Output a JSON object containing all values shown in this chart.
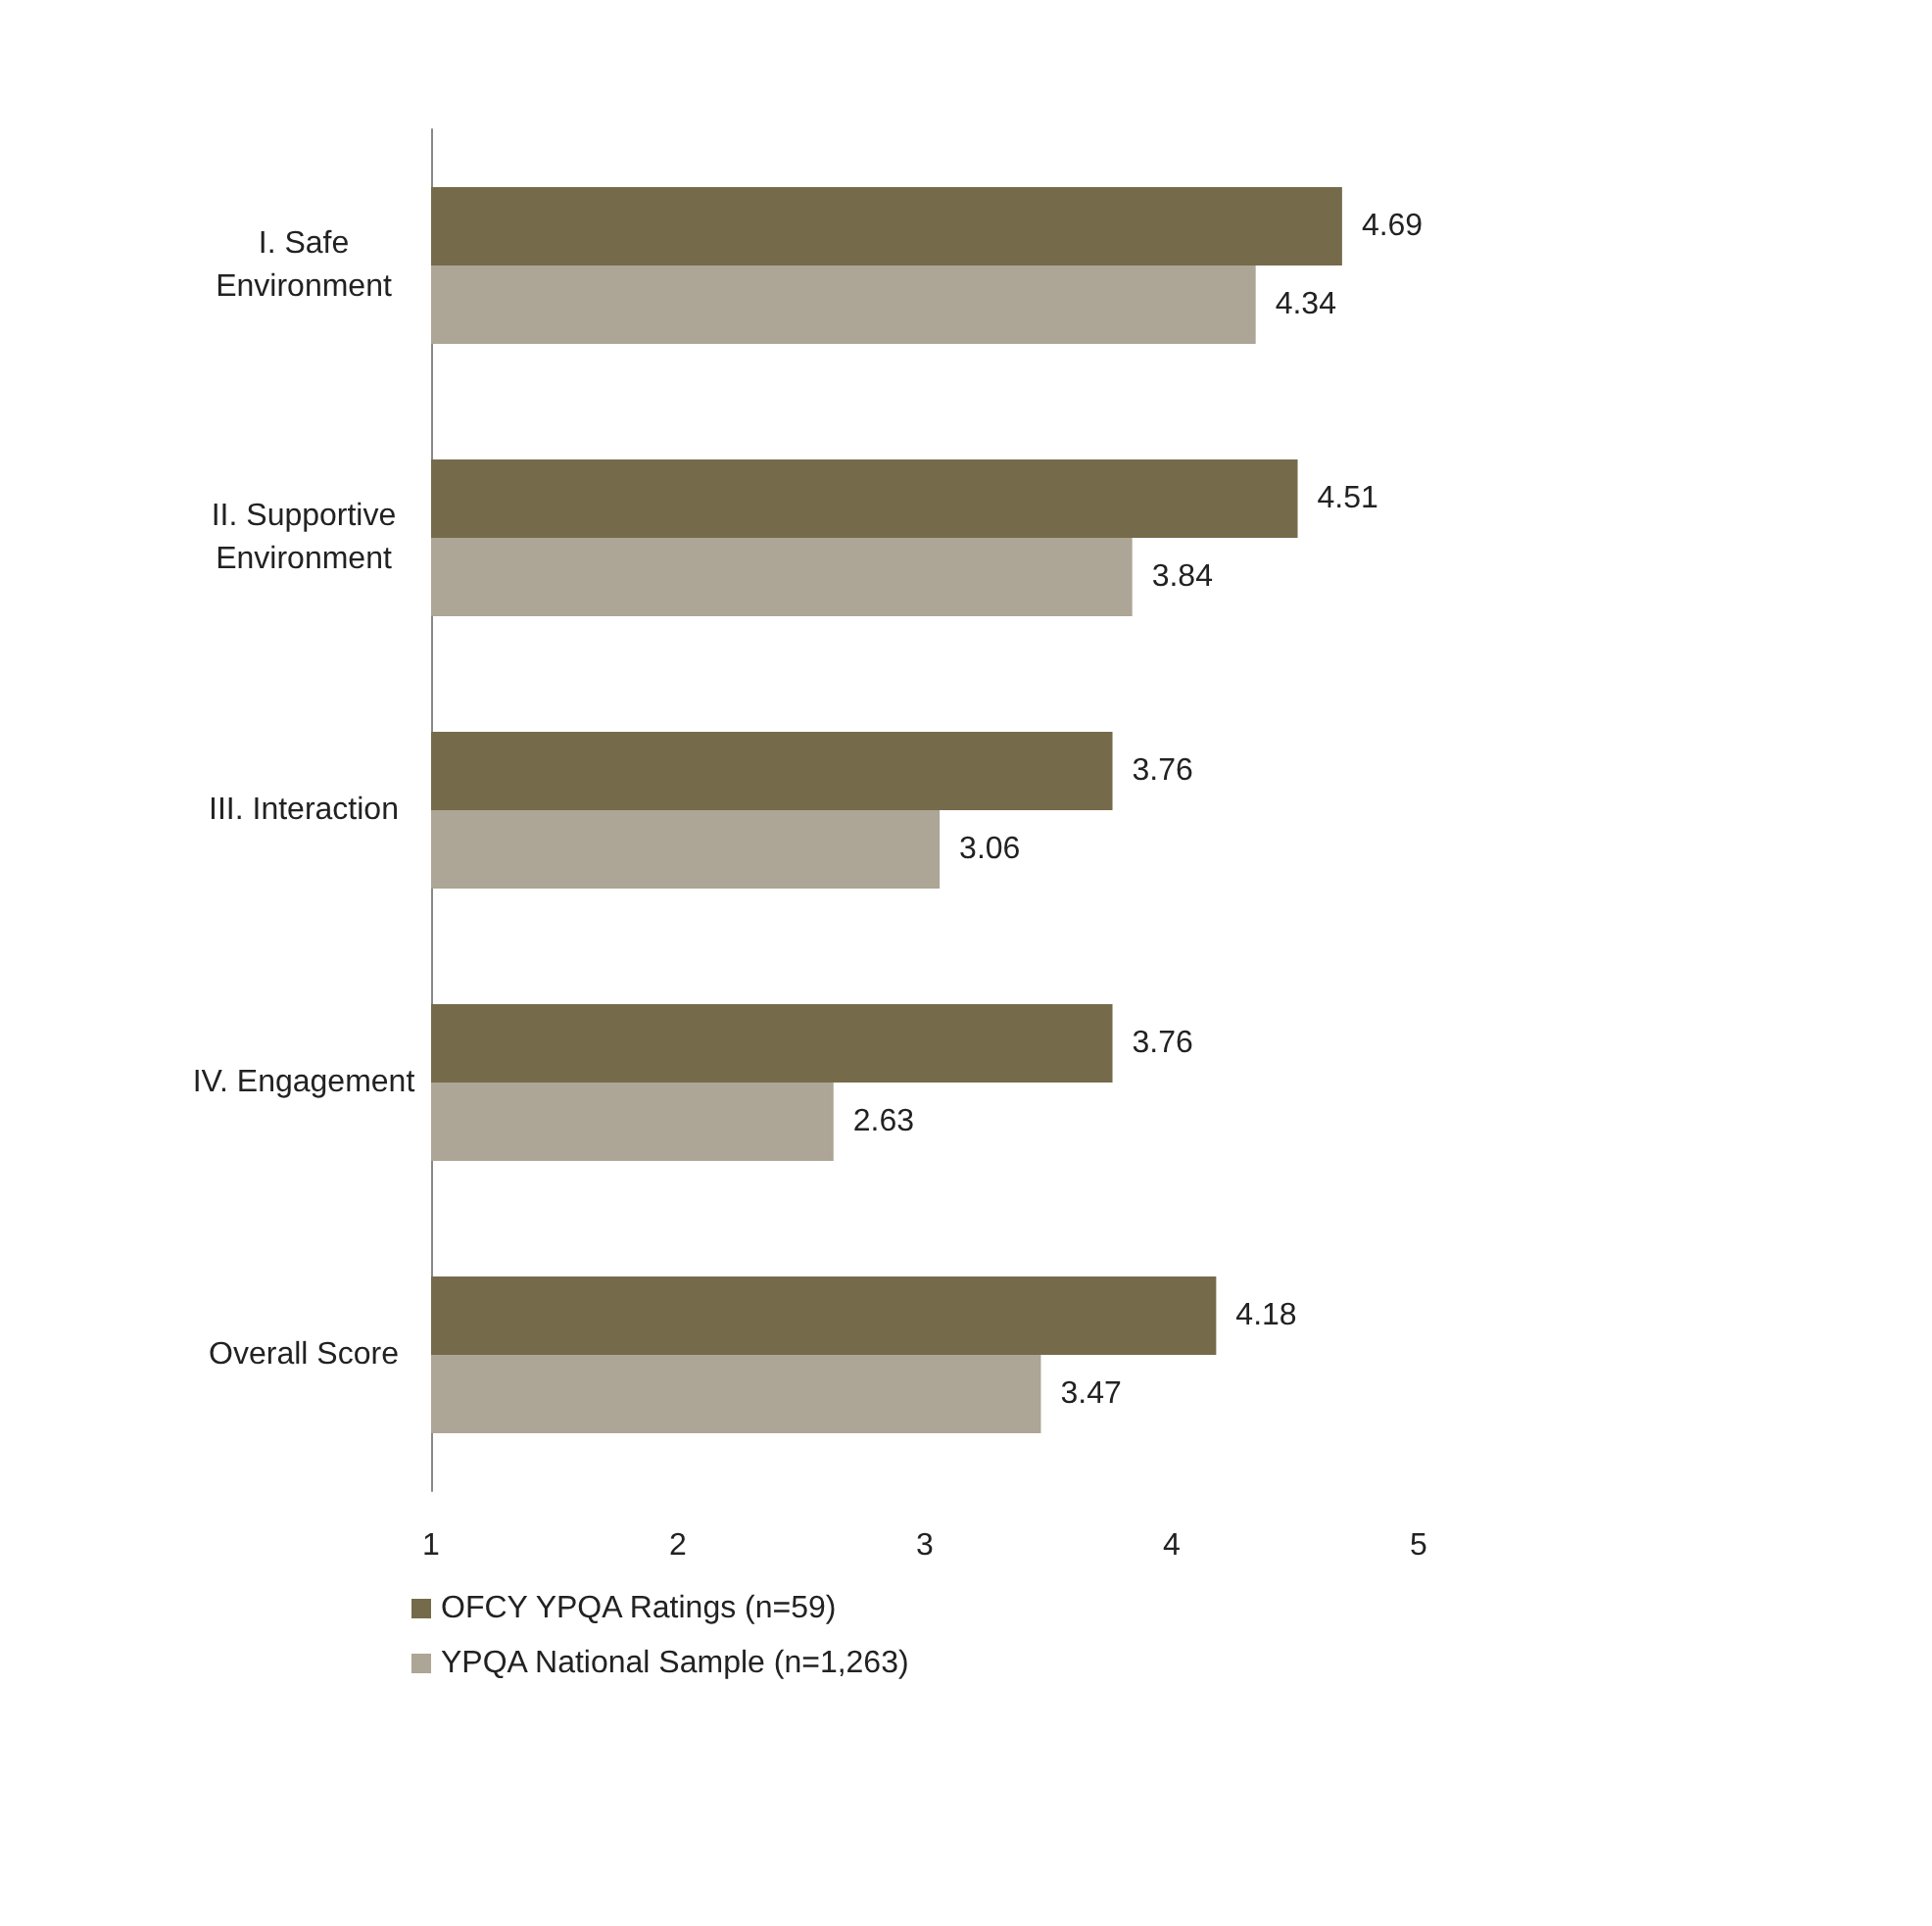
{
  "chart_data": {
    "type": "bar",
    "orientation": "horizontal",
    "categories": [
      "I. Safe\nEnvironment",
      "II. Supportive\nEnvironment",
      "III. Interaction",
      "IV. Engagement",
      "Overall Score"
    ],
    "series": [
      {
        "name": "OFCY YPQA Ratings (n=59)",
        "color": "#756b4a",
        "values": [
          4.69,
          4.51,
          3.76,
          3.76,
          4.18
        ]
      },
      {
        "name": "YPQA National Sample (n=1,263)",
        "color": "#ada595",
        "values": [
          4.34,
          3.84,
          3.06,
          2.63,
          3.47
        ]
      }
    ],
    "xlim": [
      1,
      5
    ],
    "xticks": [
      1,
      2,
      3,
      4,
      5
    ],
    "data_labels": true,
    "legend": "bottom"
  }
}
